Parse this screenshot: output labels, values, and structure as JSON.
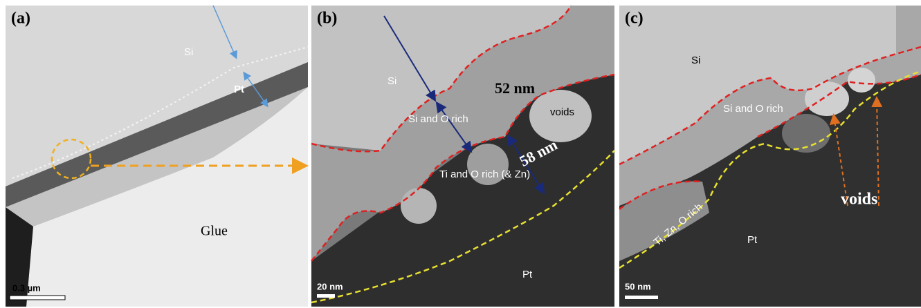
{
  "panels": [
    {
      "label": "(a)",
      "annotations": [
        "Si",
        "Pt",
        "Glue"
      ],
      "scale_bar": "0.3 µm"
    },
    {
      "label": "(b)",
      "annotations": [
        "Si",
        "52 nm",
        "voids",
        "Si and O rich",
        "58 nm",
        "Ti and O rich (& Zn)",
        "Pt"
      ],
      "scale_bar": "20 nm"
    },
    {
      "label": "(c)",
      "annotations": [
        "Si",
        "Si and O rich",
        "Ti, Zn, O rich",
        "voids",
        "Pt"
      ],
      "scale_bar": "50 nm"
    }
  ]
}
